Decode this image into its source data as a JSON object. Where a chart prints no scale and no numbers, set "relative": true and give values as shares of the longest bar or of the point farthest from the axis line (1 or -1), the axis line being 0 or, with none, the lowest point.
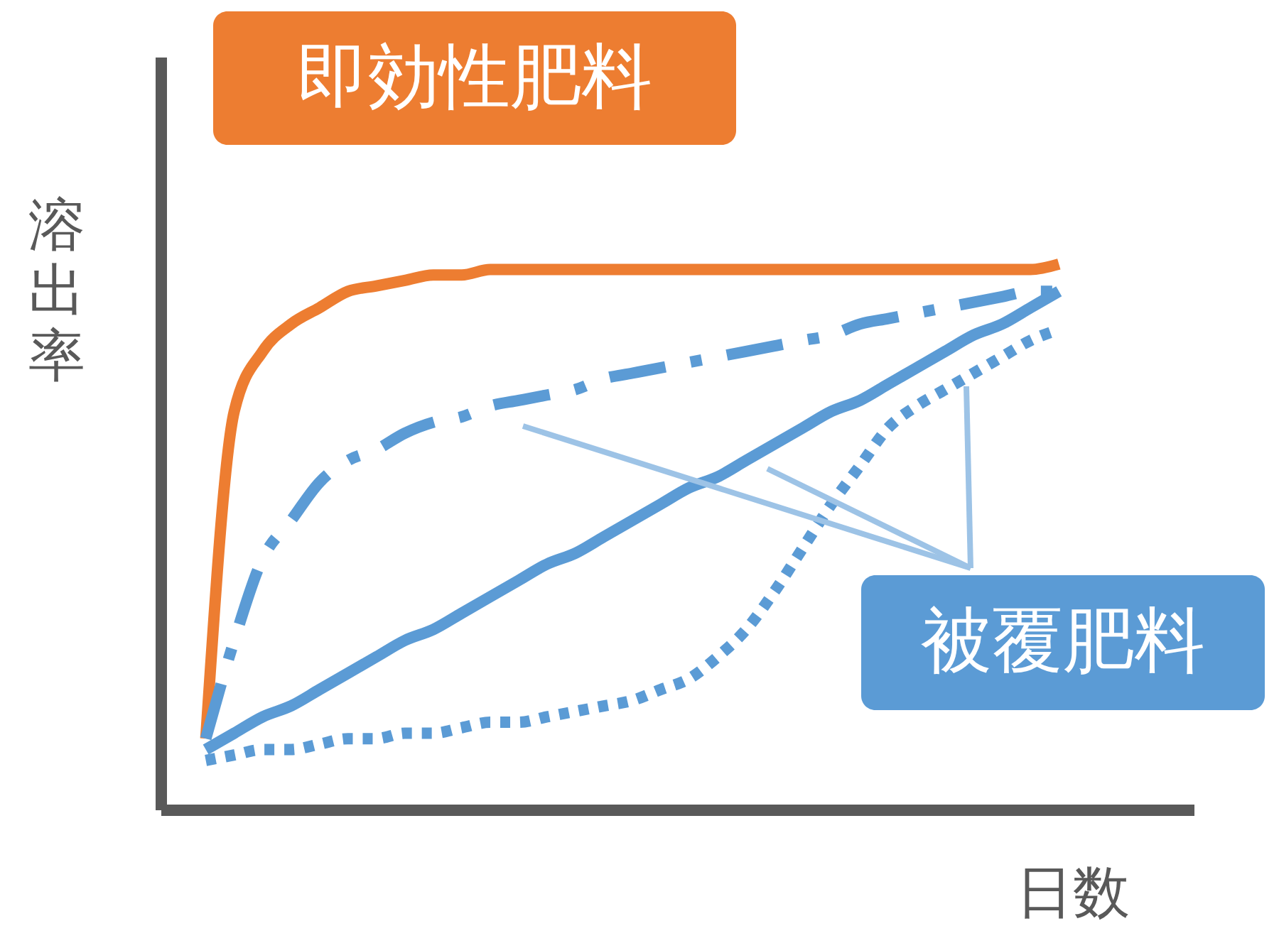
{
  "chart_data": {
    "type": "line",
    "relative": true,
    "ylabel": "溶出率",
    "xlabel": "日数",
    "marker": "none",
    "categories": [
      null,
      null,
      null,
      null,
      null,
      null,
      null,
      null,
      null,
      null,
      null,
      null,
      null,
      null,
      null,
      null,
      null,
      null,
      null,
      null,
      null,
      null,
      null,
      null,
      null,
      null,
      null,
      null,
      null,
      null,
      null
    ],
    "annotations": [
      "即効性肥料",
      "被覆肥料"
    ],
    "series": [
      {
        "color": "#ed7d31",
        "line_style": "solid",
        "values": [
          0.13,
          0.73,
          0.84,
          0.89,
          0.92,
          0.95,
          0.96,
          0.97,
          0.98,
          0.98,
          0.99,
          0.99,
          0.99,
          0.99,
          0.99,
          0.99,
          0.99,
          0.99,
          0.99,
          0.99,
          0.99,
          0.99,
          0.99,
          0.99,
          0.99,
          0.99,
          0.99,
          0.99,
          0.99,
          0.99,
          1.0
        ]
      },
      {
        "color": "#5b9bd5",
        "line_style": "dashed",
        "values": [
          0.13,
          0.31,
          0.46,
          0.53,
          0.6,
          0.64,
          0.66,
          0.69,
          0.71,
          0.72,
          0.74,
          0.75,
          0.76,
          0.77,
          0.79,
          0.8,
          0.81,
          0.82,
          0.83,
          0.84,
          0.85,
          0.86,
          0.87,
          0.89,
          0.9,
          0.91,
          0.92,
          0.93,
          0.94,
          0.95,
          0.95
        ]
      },
      {
        "color": "#5b9bd5",
        "line_style": "solid",
        "values": [
          0.11,
          0.14,
          0.17,
          0.19,
          0.22,
          0.25,
          0.28,
          0.31,
          0.33,
          0.36,
          0.39,
          0.42,
          0.45,
          0.47,
          0.5,
          0.53,
          0.56,
          0.59,
          0.61,
          0.64,
          0.67,
          0.7,
          0.73,
          0.75,
          0.78,
          0.81,
          0.84,
          0.87,
          0.89,
          0.92,
          0.95
        ]
      },
      {
        "color": "#5b9bd5",
        "line_style": "dotted",
        "values": [
          0.09,
          0.1,
          0.11,
          0.11,
          0.12,
          0.13,
          0.13,
          0.14,
          0.14,
          0.15,
          0.16,
          0.16,
          0.17,
          0.18,
          0.19,
          0.2,
          0.22,
          0.24,
          0.28,
          0.33,
          0.4,
          0.48,
          0.56,
          0.63,
          0.7,
          0.74,
          0.77,
          0.8,
          0.83,
          0.86,
          0.88
        ]
      }
    ]
  }
}
